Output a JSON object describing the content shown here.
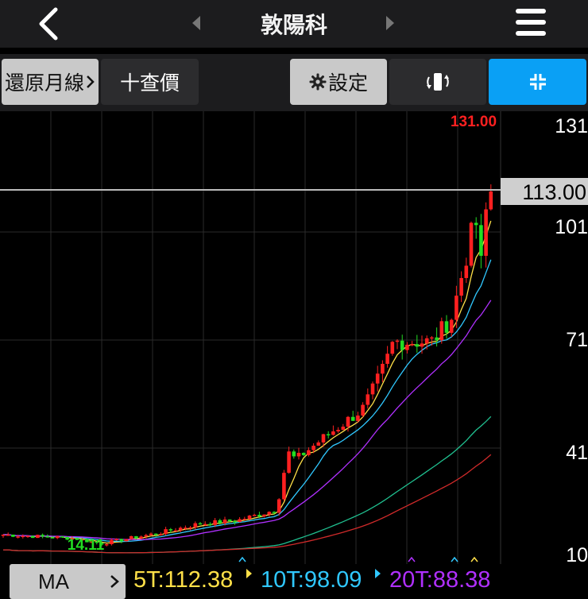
{
  "nav": {
    "title": "敦陽科",
    "icons": [
      "back-chevron-icon",
      "prev-triangle-icon",
      "next-triangle-icon",
      "hamburger-menu-icon"
    ]
  },
  "toolbar": {
    "restore_label": "還原月線",
    "query_label": "十查價",
    "settings_label": "設定",
    "icons": [
      "gear-icon",
      "rotate-icon",
      "collapse-icon"
    ]
  },
  "colors": {
    "up": "#ff2020",
    "down": "#22dd22",
    "ma5": "#ffe048",
    "ma10": "#30c8ff",
    "ma20": "#b030ff",
    "accent_blue": "#0aa0f5"
  },
  "chart_data": {
    "type": "candlestick",
    "y_axis_labels": [
      "131",
      "101",
      "71",
      "41",
      "10"
    ],
    "current_price_label": "113.00",
    "max_label": "131.00",
    "min_label": "14.11",
    "ma": {
      "label": "MA",
      "series": [
        {
          "name": "5T",
          "value_label": "5T:112.38",
          "color": "#ffe048"
        },
        {
          "name": "10T",
          "value_label": "10T:98.09",
          "color": "#30c8ff"
        },
        {
          "name": "20T",
          "value_label": "20T:88.38",
          "color": "#b030ff"
        }
      ]
    }
  }
}
